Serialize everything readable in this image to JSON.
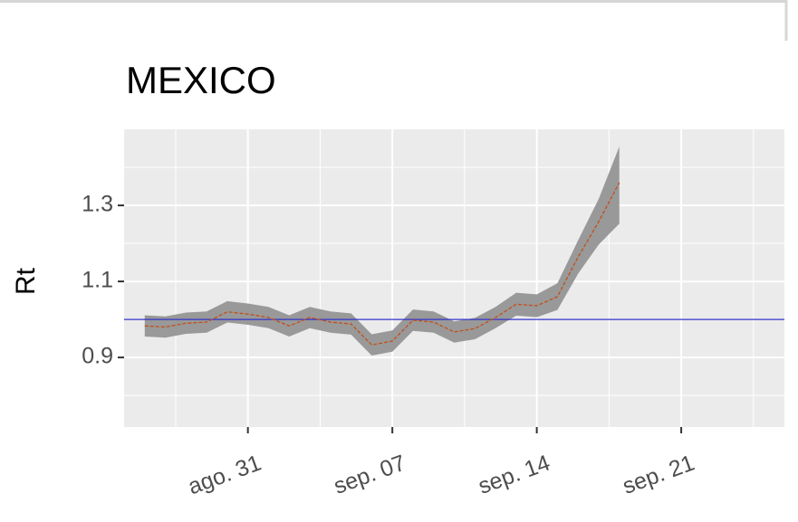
{
  "chart_data": {
    "type": "line",
    "title": "MEXICO",
    "y_label": "Rt",
    "x": [
      "08-26",
      "08-27",
      "08-28",
      "08-29",
      "08-30",
      "08-31",
      "09-01",
      "09-02",
      "09-03",
      "09-04",
      "09-05",
      "09-06",
      "09-07",
      "09-08",
      "09-09",
      "09-10",
      "09-11",
      "09-12",
      "09-13",
      "09-14",
      "09-15",
      "09-16",
      "09-17",
      "09-18"
    ],
    "values": [
      0.983,
      0.98,
      0.99,
      0.993,
      1.02,
      1.014,
      1.005,
      0.983,
      1.005,
      0.993,
      0.988,
      0.933,
      0.943,
      0.998,
      0.993,
      0.967,
      0.976,
      1.005,
      1.04,
      1.036,
      1.06,
      1.164,
      1.257,
      1.36
    ],
    "lower": [
      0.955,
      0.952,
      0.962,
      0.965,
      0.992,
      0.986,
      0.977,
      0.955,
      0.977,
      0.965,
      0.96,
      0.905,
      0.915,
      0.97,
      0.965,
      0.939,
      0.948,
      0.977,
      1.01,
      1.006,
      1.025,
      1.12,
      1.197,
      1.252
    ],
    "upper": [
      1.011,
      1.008,
      1.018,
      1.021,
      1.048,
      1.042,
      1.033,
      1.011,
      1.033,
      1.021,
      1.016,
      0.961,
      0.971,
      1.026,
      1.021,
      0.995,
      1.004,
      1.033,
      1.07,
      1.066,
      1.095,
      1.208,
      1.317,
      1.455
    ],
    "color": "#c0501a",
    "band_color": "#999999",
    "hline": 1.0,
    "hline_color": "#3333cc",
    "xlim": [
      "08-25",
      "09-26"
    ],
    "xticks": [
      {
        "value": "08-31",
        "label": "ago. 31"
      },
      {
        "value": "09-07",
        "label": "sep. 07"
      },
      {
        "value": "09-14",
        "label": "sep. 14"
      },
      {
        "value": "09-21",
        "label": "sep. 21"
      }
    ],
    "ylim": [
      0.717,
      1.5
    ],
    "yticks": [
      0.9,
      1.1,
      1.3
    ],
    "grid": true
  }
}
